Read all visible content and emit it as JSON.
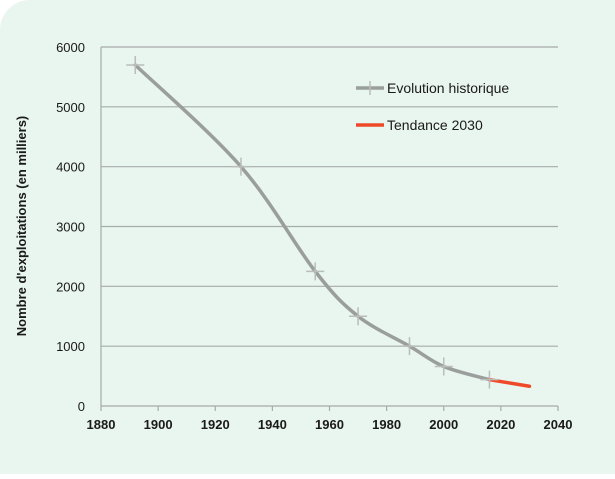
{
  "chart_data": {
    "type": "line",
    "title": "",
    "xlabel": "",
    "ylabel": "Nombre d'exploitations (en milliers)",
    "xlim": [
      1880,
      2040
    ],
    "ylim": [
      0,
      6000
    ],
    "xticks": [
      "1880",
      "1900",
      "1920",
      "1940",
      "1960",
      "1980",
      "2000",
      "2020",
      "2040"
    ],
    "yticks": [
      "0",
      "1000",
      "2000",
      "3000",
      "4000",
      "5000",
      "6000"
    ],
    "grid": "horizontal",
    "legend_position": "top-right",
    "series": [
      {
        "name": "Evolution historique",
        "color": "#9a9e9c",
        "marker": "plus",
        "x": [
          1892,
          1929,
          1955,
          1970,
          1988,
          2000,
          2016
        ],
        "y": [
          5700,
          4000,
          2250,
          1500,
          1000,
          660,
          440
        ]
      },
      {
        "name": "Tendance 2030",
        "color": "#ee4a2a",
        "marker": "none",
        "x": [
          2016,
          2030
        ],
        "y": [
          440,
          330
        ]
      }
    ]
  }
}
